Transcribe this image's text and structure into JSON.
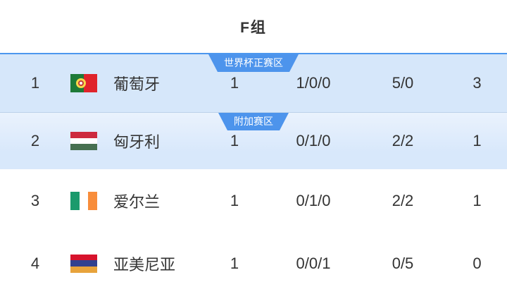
{
  "title": "F组",
  "accent_color": "#4D94EC",
  "qualified_row_bg": "#D6E7FA",
  "playoff_row_bg": "#DFECFC",
  "rows": [
    {
      "rank": "1",
      "flag_icon": "portugal-flag",
      "team": "葡萄牙",
      "zone_badge": "世界杯正赛区",
      "played": "1",
      "win_draw_loss": "1/0/0",
      "goals_for_against": "5/0",
      "points": "3"
    },
    {
      "rank": "2",
      "flag_icon": "hungary-flag",
      "team": "匈牙利",
      "zone_badge": "附加赛区",
      "played": "1",
      "win_draw_loss": "0/1/0",
      "goals_for_against": "2/2",
      "points": "1"
    },
    {
      "rank": "3",
      "flag_icon": "ireland-flag",
      "team": "爱尔兰",
      "played": "1",
      "win_draw_loss": "0/1/0",
      "goals_for_against": "2/2",
      "points": "1"
    },
    {
      "rank": "4",
      "flag_icon": "armenia-flag",
      "team": "亚美尼亚",
      "played": "1",
      "win_draw_loss": "0/0/1",
      "goals_for_against": "0/5",
      "points": "0"
    }
  ]
}
